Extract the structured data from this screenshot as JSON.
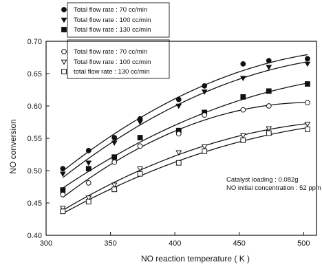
{
  "chart_data": {
    "type": "scatter",
    "xlabel": "NO reaction temperature ( K )",
    "ylabel": "NO conversion",
    "xlim": [
      300,
      510
    ],
    "ylim": [
      0.4,
      0.7
    ],
    "xticks": [
      300,
      350,
      400,
      450,
      500
    ],
    "yticks": [
      0.4,
      0.45,
      0.5,
      0.55,
      0.6,
      0.65,
      0.7
    ],
    "ytick_labels": [
      "0.40",
      "0.45",
      "0.50",
      "0.55",
      "0.60",
      "0.65",
      "0.70"
    ],
    "grid": false,
    "legend_position": "top-left",
    "annotations": [
      "Catalyst loading : 0.082g",
      "NO initial concentration : 52 ppm"
    ],
    "series": [
      {
        "name": "Total flow rate : 70 cc/min",
        "marker": "circle",
        "filled": true,
        "x": [
          313,
          333,
          353,
          373,
          403,
          423,
          453,
          473,
          503
        ],
        "y": [
          0.503,
          0.531,
          0.551,
          0.58,
          0.61,
          0.631,
          0.665,
          0.67,
          0.673
        ]
      },
      {
        "name": "Total flow rate : 100 cc/min",
        "marker": "triangle-down",
        "filled": true,
        "x": [
          313,
          333,
          353,
          373,
          403,
          423,
          453,
          473,
          503
        ],
        "y": [
          0.495,
          0.512,
          0.543,
          0.575,
          0.6,
          0.622,
          0.643,
          0.66,
          0.665
        ]
      },
      {
        "name": "Total flow rate : 130 cc/min",
        "marker": "square",
        "filled": true,
        "x": [
          313,
          333,
          353,
          373,
          403,
          423,
          453,
          473,
          503
        ],
        "y": [
          0.47,
          0.503,
          0.521,
          0.551,
          0.562,
          0.59,
          0.614,
          0.623,
          0.634
        ]
      },
      {
        "name": "Total flow rate : 70 cc/min",
        "marker": "circle",
        "filled": false,
        "x": [
          313,
          333,
          353,
          373,
          403,
          423,
          453,
          473,
          503
        ],
        "y": [
          0.463,
          0.481,
          0.513,
          0.538,
          0.557,
          0.586,
          0.594,
          0.6,
          0.605
        ]
      },
      {
        "name": "Total flow rate : 100 cc/min",
        "marker": "triangle-down",
        "filled": false,
        "x": [
          313,
          333,
          353,
          373,
          403,
          423,
          453,
          473,
          503
        ],
        "y": [
          0.442,
          0.458,
          0.478,
          0.503,
          0.528,
          0.537,
          0.554,
          0.565,
          0.572
        ]
      },
      {
        "name": "total flow rate : 130 cc/min",
        "marker": "square",
        "filled": false,
        "x": [
          313,
          333,
          353,
          373,
          403,
          423,
          453,
          473,
          503
        ],
        "y": [
          0.437,
          0.452,
          0.471,
          0.495,
          0.512,
          0.53,
          0.547,
          0.558,
          0.564
        ]
      }
    ]
  }
}
